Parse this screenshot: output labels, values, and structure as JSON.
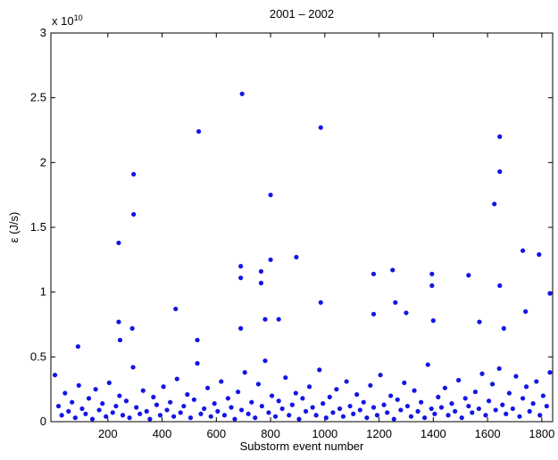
{
  "chart_data": {
    "type": "scatter",
    "title": "2001 – 2002",
    "x_label": "Substorm event number",
    "y_label": "ε (J/s)",
    "y_multiplier": {
      "base": "x 10",
      "exponent": "10"
    },
    "color": "#1414e6",
    "xlim": [
      -10,
      1840
    ],
    "ylim": [
      0,
      3
    ],
    "xticks": [
      200,
      400,
      600,
      800,
      1000,
      1200,
      1400,
      1600,
      1800
    ],
    "yticks": [
      0,
      0.5,
      1,
      1.5,
      2,
      2.5,
      3
    ],
    "x": [
      5,
      18,
      30,
      42,
      55,
      68,
      80,
      93,
      105,
      118,
      130,
      143,
      155,
      168,
      180,
      193,
      205,
      218,
      230,
      243,
      255,
      268,
      280,
      293,
      305,
      318,
      330,
      343,
      355,
      368,
      380,
      393,
      405,
      418,
      430,
      443,
      455,
      468,
      480,
      493,
      505,
      518,
      530,
      543,
      555,
      568,
      580,
      593,
      605,
      618,
      630,
      643,
      655,
      668,
      680,
      693,
      705,
      718,
      730,
      743,
      755,
      768,
      780,
      793,
      805,
      818,
      830,
      843,
      855,
      868,
      880,
      893,
      905,
      918,
      930,
      943,
      955,
      968,
      980,
      993,
      1005,
      1018,
      1030,
      1043,
      1055,
      1068,
      1080,
      1093,
      1105,
      1118,
      1130,
      1143,
      1155,
      1168,
      1180,
      1193,
      1205,
      1218,
      1230,
      1243,
      1255,
      1268,
      1280,
      1293,
      1305,
      1318,
      1330,
      1343,
      1355,
      1368,
      1380,
      1393,
      1405,
      1418,
      1430,
      1443,
      1455,
      1468,
      1480,
      1493,
      1505,
      1518,
      1530,
      1543,
      1555,
      1568,
      1580,
      1593,
      1605,
      1618,
      1630,
      1643,
      1655,
      1668,
      1680,
      1693,
      1705,
      1718,
      1730,
      1743,
      1755,
      1768,
      1780,
      1793,
      1805,
      1818,
      1830,
      240,
      295,
      295,
      535,
      695,
      985,
      800,
      800,
      895,
      690,
      690,
      765,
      765,
      985,
      450,
      1645,
      1645,
      1625,
      1645,
      1180,
      1250,
      1395,
      1395,
      1530,
      1730,
      1790,
      1830,
      240,
      290,
      245,
      90,
      530,
      780,
      830,
      690,
      1740,
      1300,
      1260,
      1180,
      1400,
      1660,
      1570
    ],
    "values": [
      0.36,
      0.12,
      0.05,
      0.22,
      0.08,
      0.15,
      0.03,
      0.28,
      0.1,
      0.06,
      0.18,
      0.02,
      0.25,
      0.09,
      0.14,
      0.04,
      0.3,
      0.07,
      0.12,
      0.2,
      0.05,
      0.16,
      0.03,
      0.42,
      0.11,
      0.06,
      0.24,
      0.08,
      0.02,
      0.19,
      0.13,
      0.05,
      0.27,
      0.09,
      0.15,
      0.04,
      0.33,
      0.07,
      0.12,
      0.21,
      0.03,
      0.17,
      0.45,
      0.06,
      0.1,
      0.26,
      0.04,
      0.14,
      0.08,
      0.31,
      0.05,
      0.18,
      0.11,
      0.02,
      0.23,
      0.09,
      0.38,
      0.06,
      0.15,
      0.03,
      0.29,
      0.12,
      0.47,
      0.07,
      0.2,
      0.04,
      0.16,
      0.1,
      0.34,
      0.05,
      0.13,
      0.22,
      0.02,
      0.18,
      0.08,
      0.27,
      0.11,
      0.05,
      0.4,
      0.14,
      0.03,
      0.19,
      0.07,
      0.25,
      0.1,
      0.04,
      0.31,
      0.12,
      0.06,
      0.21,
      0.09,
      0.15,
      0.03,
      0.28,
      0.11,
      0.05,
      0.36,
      0.13,
      0.07,
      0.2,
      0.02,
      0.17,
      0.09,
      0.3,
      0.12,
      0.04,
      0.24,
      0.08,
      0.15,
      0.03,
      0.44,
      0.1,
      0.06,
      0.19,
      0.11,
      0.26,
      0.05,
      0.14,
      0.08,
      0.32,
      0.03,
      0.18,
      0.12,
      0.07,
      0.23,
      0.1,
      0.37,
      0.05,
      0.16,
      0.29,
      0.09,
      0.41,
      0.13,
      0.06,
      0.22,
      0.1,
      0.35,
      0.04,
      0.18,
      0.27,
      0.08,
      0.14,
      0.31,
      0.05,
      0.2,
      0.12,
      0.38,
      1.38,
      1.91,
      1.6,
      2.24,
      2.53,
      2.27,
      1.75,
      1.25,
      1.27,
      1.2,
      1.11,
      1.16,
      1.07,
      0.92,
      0.87,
      2.2,
      1.93,
      1.68,
      1.05,
      1.14,
      1.17,
      1.14,
      1.05,
      1.13,
      1.32,
      1.29,
      0.99,
      0.77,
      0.72,
      0.63,
      0.58,
      0.63,
      0.79,
      0.79,
      0.72,
      0.85,
      0.84,
      0.92,
      0.83,
      0.78,
      0.72,
      0.77
    ]
  }
}
